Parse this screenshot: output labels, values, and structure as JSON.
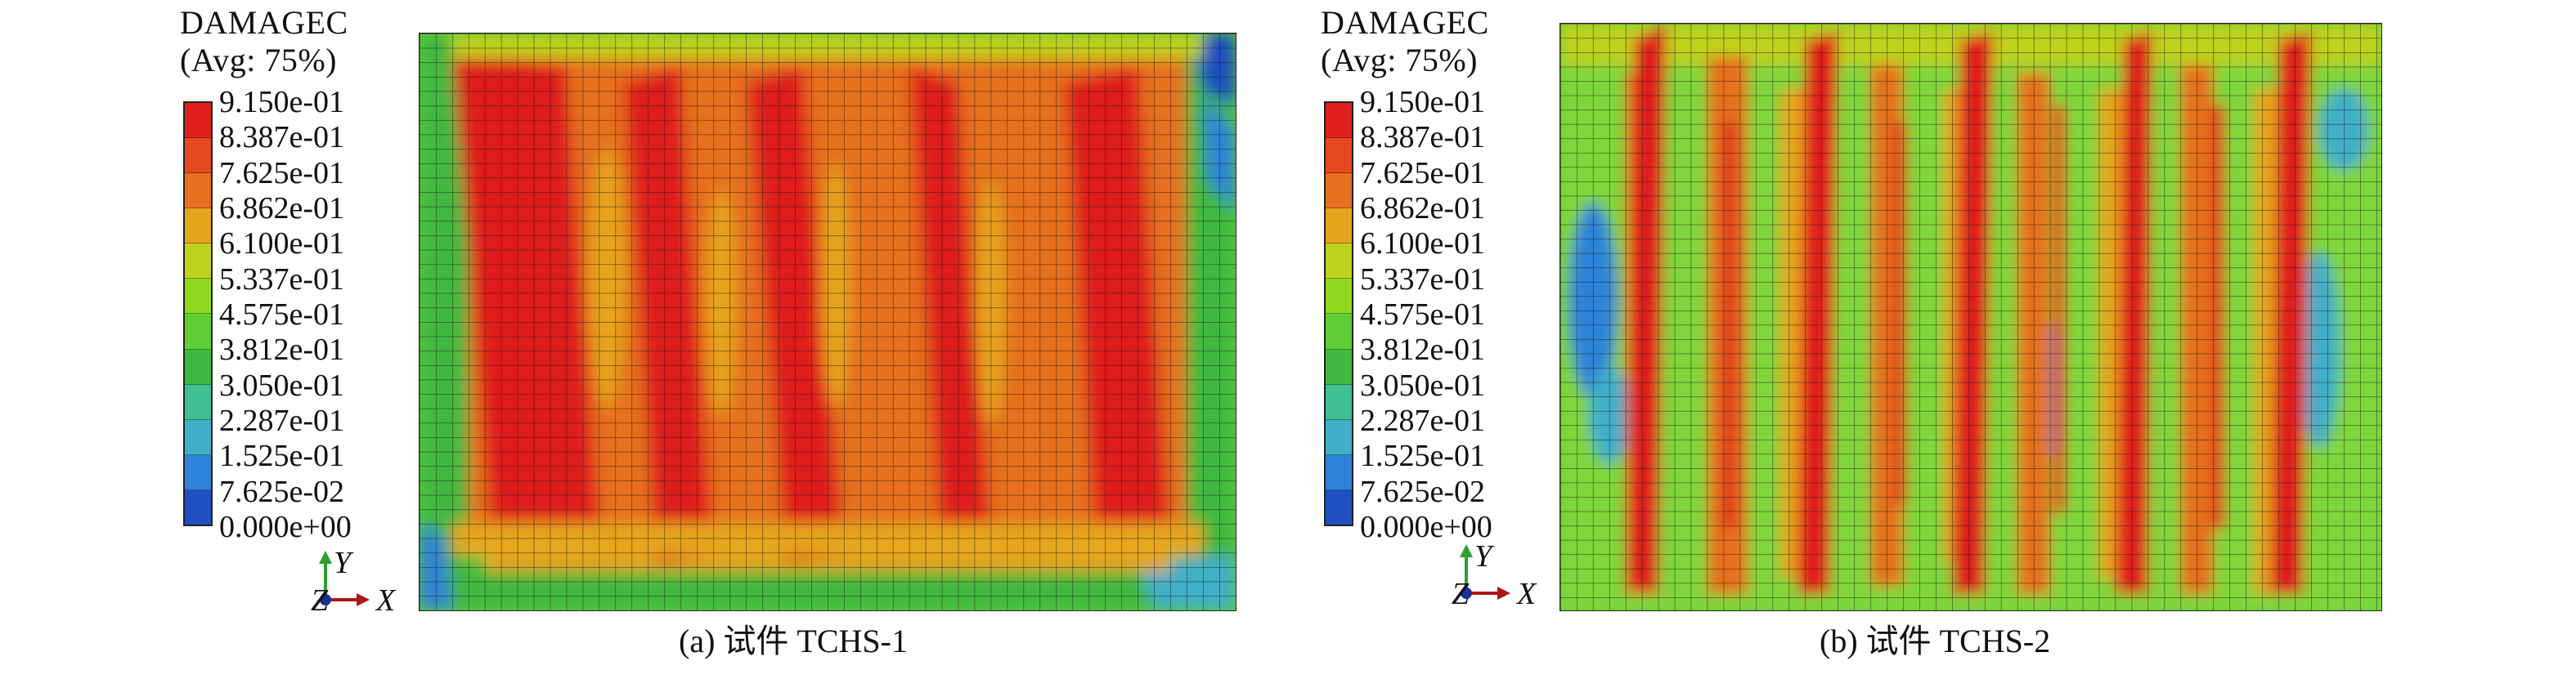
{
  "legend": {
    "title_line1": "DAMAGEC",
    "title_line2": "(Avg: 75%)",
    "values": [
      "9.150e-01",
      "8.387e-01",
      "7.625e-01",
      "6.862e-01",
      "6.100e-01",
      "5.337e-01",
      "4.575e-01",
      "3.812e-01",
      "3.050e-01",
      "2.287e-01",
      "1.525e-01",
      "7.625e-02",
      "0.000e+00"
    ],
    "colors": [
      "#e01f1f",
      "#e6491f",
      "#e6701f",
      "#e6a51f",
      "#bfd21f",
      "#8fd81f",
      "#5fcf35",
      "#3fb83f",
      "#3fbf95",
      "#3fafc8",
      "#2f83d8",
      "#1f4fc0",
      "#1a2f9a"
    ]
  },
  "panels": [
    {
      "caption": "(a) 试件 TCHS-1",
      "axis_y": "Y",
      "axis_x": "X",
      "axis_z": "Z"
    },
    {
      "caption": "(b) 试件 TCHS-2",
      "axis_y": "Y",
      "axis_x": "X",
      "axis_z": "Z"
    }
  ]
}
